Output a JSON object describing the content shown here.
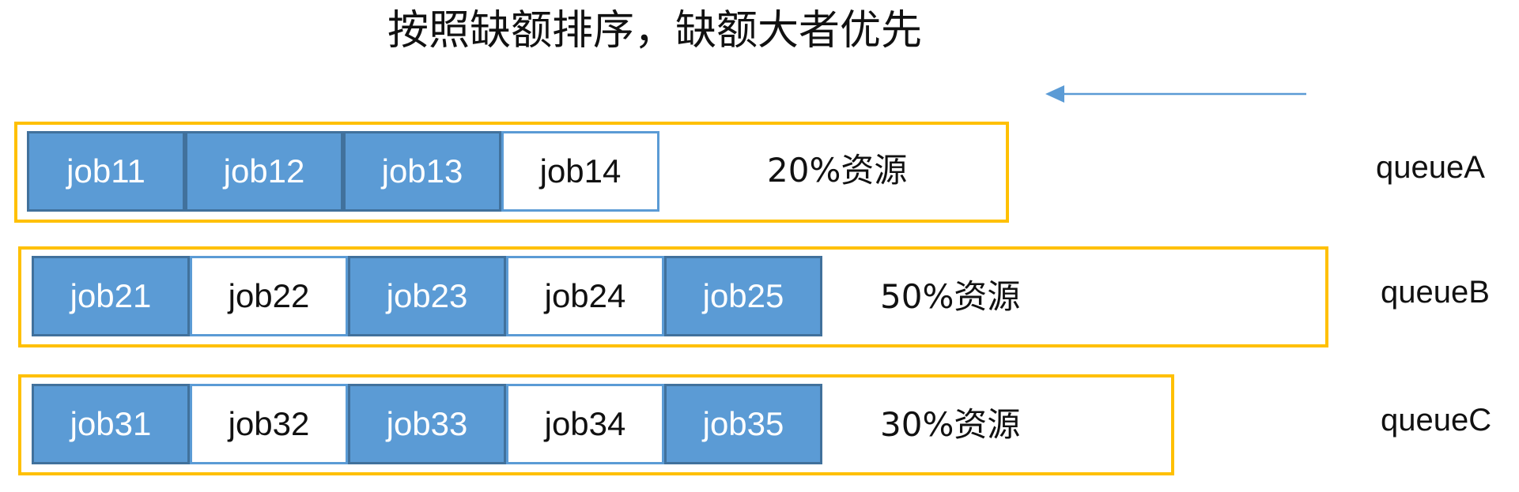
{
  "title": "按照缺额排序，缺额大者优先",
  "colors": {
    "queue_frame": "#FFC000",
    "job_filled": "#5B9BD5",
    "job_filled_border": "#41719C",
    "job_empty_border": "#5B9BD5",
    "arrow": "#5B9BD5"
  },
  "arrow": {
    "direction": "left"
  },
  "queues": [
    {
      "name": "queueA",
      "share": "20%资源",
      "jobs": [
        {
          "label": "job11",
          "filled": true
        },
        {
          "label": "job12",
          "filled": true
        },
        {
          "label": "job13",
          "filled": true
        },
        {
          "label": "job14",
          "filled": false
        }
      ]
    },
    {
      "name": "queueB",
      "share": "50%资源",
      "jobs": [
        {
          "label": "job21",
          "filled": true
        },
        {
          "label": "job22",
          "filled": false
        },
        {
          "label": "job23",
          "filled": true
        },
        {
          "label": "job24",
          "filled": false
        },
        {
          "label": "job25",
          "filled": true
        }
      ]
    },
    {
      "name": "queueC",
      "share": "30%资源",
      "jobs": [
        {
          "label": "job31",
          "filled": true
        },
        {
          "label": "job32",
          "filled": false
        },
        {
          "label": "job33",
          "filled": true
        },
        {
          "label": "job34",
          "filled": false
        },
        {
          "label": "job35",
          "filled": true
        }
      ]
    }
  ]
}
